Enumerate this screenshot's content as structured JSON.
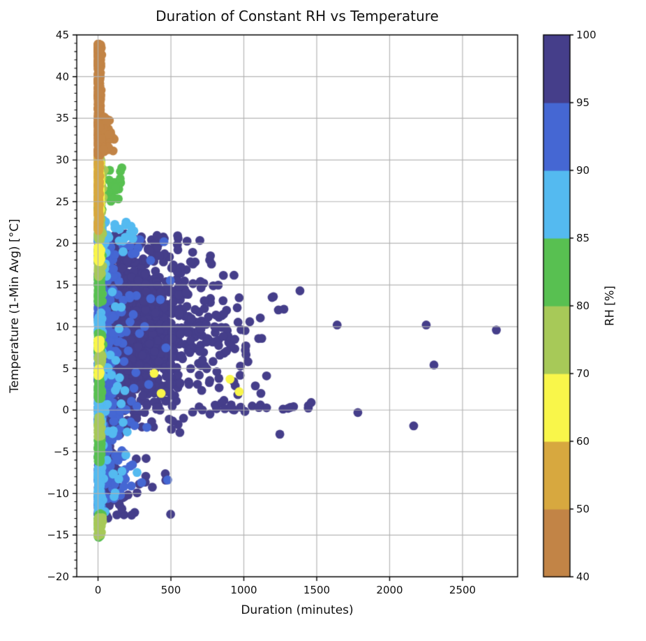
{
  "chart_data": {
    "type": "scatter",
    "title": "Duration of Constant RH vs Temperature",
    "xlabel": "Duration (minutes)",
    "ylabel": "Temperature (1-Min Avg) [°C]",
    "xlim": [
      -146,
      2878
    ],
    "ylim": [
      -20,
      45
    ],
    "xticks": [
      0,
      500,
      1000,
      1500,
      2000,
      2500
    ],
    "yticks": [
      -20,
      -15,
      -10,
      -5,
      0,
      5,
      10,
      15,
      20,
      25,
      30,
      35,
      40,
      45
    ],
    "y_minor_step": 1,
    "grid": {
      "show": true,
      "color": "#b2b2b2",
      "width": 1.2,
      "above_points": true
    },
    "axes_color": "#000000",
    "marker_radius_px": 6.4,
    "palette": {
      "navy": "#453e8a",
      "royal": "#4567d3",
      "sky": "#54baf0",
      "green": "#58c051",
      "ygreen": "#a7c958",
      "yellow": "#f9f64a",
      "gold": "#d7a83f",
      "brown": "#c28446"
    },
    "colorbar": {
      "label": "RH [%]",
      "boundaries": [
        40,
        50,
        60,
        70,
        80,
        85,
        90,
        95,
        100
      ],
      "band_colors": [
        "brown",
        "gold",
        "yellow",
        "ygreen",
        "green",
        "sky",
        "royal",
        "navy"
      ]
    },
    "seed": 42,
    "clusters": [
      {
        "name": "navy-core",
        "color": "navy",
        "n": 1700,
        "x": {
          "kind": "expo",
          "min": 6,
          "scale": 230,
          "max": 1140
        },
        "y": {
          "kind": "normal",
          "mean": 9.5,
          "sd": 5.2,
          "clip": [
            -4.6,
            20.9
          ]
        }
      },
      {
        "name": "navy-column",
        "color": "navy",
        "n": 220,
        "x": {
          "kind": "halfnormal",
          "scale": 16,
          "max": 85
        },
        "y": {
          "kind": "uniform",
          "min": -12.8,
          "max": 20.5
        }
      },
      {
        "name": "navy-low",
        "color": "navy",
        "n": 75,
        "x": {
          "kind": "expo",
          "min": 5,
          "scale": 130,
          "max": 890
        },
        "y": {
          "kind": "uniform",
          "min": -13,
          "max": -4.4
        }
      },
      {
        "name": "navy-row-zero",
        "color": "navy",
        "n": 26,
        "x": {
          "kind": "uniform",
          "min": 20,
          "max": 1460
        },
        "y": {
          "kind": "normal",
          "mean": 0.32,
          "sd": 0.3,
          "clip": [
            -0.4,
            1.0
          ]
        }
      },
      {
        "name": "navy-top-fringe",
        "color": "navy",
        "n": 26,
        "x": {
          "kind": "uniform",
          "min": 10,
          "max": 560
        },
        "y": {
          "kind": "uniform",
          "min": 18.5,
          "max": 21.2
        }
      },
      {
        "name": "navy-outliers",
        "color": "navy",
        "kind": "list",
        "points": [
          [
            1079,
            2.9
          ],
          [
            1103,
            0.3
          ],
          [
            1117,
            2.0
          ],
          [
            1156,
            4.1
          ],
          [
            1194,
            13.5
          ],
          [
            1203,
            13.6
          ],
          [
            1237,
            12.0
          ],
          [
            1247,
            -2.9
          ],
          [
            1275,
            12.1
          ],
          [
            1304,
            0.2
          ],
          [
            1385,
            14.3
          ],
          [
            1462,
            0.9
          ],
          [
            1640,
            10.2
          ],
          [
            1782,
            -0.3
          ],
          [
            2165,
            -1.9
          ],
          [
            2251,
            10.2
          ],
          [
            2304,
            5.4
          ],
          [
            2732,
            9.6
          ]
        ]
      },
      {
        "name": "royal-scatter",
        "color": "royal",
        "n": 270,
        "x": {
          "kind": "expo",
          "min": 12,
          "scale": 95,
          "max": 520
        },
        "y": {
          "kind": "uniform",
          "min": -11,
          "max": 20.6
        }
      },
      {
        "name": "royal-column",
        "color": "royal",
        "n": 330,
        "x": {
          "kind": "halfnormal",
          "scale": 12,
          "max": 70
        },
        "y": {
          "kind": "bands",
          "bands": [
            [
              18.5,
              20.5
            ],
            [
              11,
              13.2
            ],
            [
              2,
              5
            ],
            [
              -1.5,
              2
            ],
            [
              -8.5,
              -4
            ],
            [
              -13.2,
              -10.5
            ]
          ]
        }
      },
      {
        "name": "sky-scatter",
        "color": "sky",
        "n": 60,
        "x": {
          "kind": "expo",
          "min": 10,
          "scale": 70,
          "max": 300
        },
        "y": {
          "kind": "uniform",
          "min": -12.5,
          "max": 22
        }
      },
      {
        "name": "sky-column",
        "color": "sky",
        "n": 420,
        "x": {
          "kind": "halfnormal",
          "scale": 11,
          "max": 60
        },
        "y": {
          "kind": "bands",
          "bands": [
            [
              20.3,
              23
            ],
            [
              9.3,
              11.2
            ],
            [
              4.4,
              7.2
            ],
            [
              -2.2,
              1.2
            ],
            [
              -12.3,
              -6.8
            ]
          ]
        }
      },
      {
        "name": "sky-bulge",
        "color": "sky",
        "n": 18,
        "x": {
          "kind": "uniform",
          "min": 40,
          "max": 250
        },
        "y": {
          "kind": "uniform",
          "min": 20.5,
          "max": 22.6
        }
      },
      {
        "name": "green-column",
        "color": "green",
        "n": 430,
        "x": {
          "kind": "halfnormal",
          "scale": 11,
          "max": 58
        },
        "y": {
          "kind": "bands",
          "bands": [
            [
              23.8,
              28.6
            ],
            [
              12.8,
              16.2
            ],
            [
              1.3,
              4.6
            ],
            [
              -6.2,
              -3.4
            ],
            [
              -15.3,
              -12.4
            ],
            [
              6.8,
              9.2
            ],
            [
              17,
              19
            ]
          ]
        }
      },
      {
        "name": "green-bulge",
        "color": "green",
        "n": 26,
        "x": {
          "kind": "uniform",
          "min": 55,
          "max": 165
        },
        "y": {
          "kind": "normal",
          "mean": 27,
          "sd": 1.2,
          "clip": [
            24.5,
            29.5
          ]
        }
      },
      {
        "name": "ygreen-column",
        "color": "ygreen",
        "n": 300,
        "x": {
          "kind": "halfnormal",
          "scale": 13,
          "max": 65
        },
        "y": {
          "kind": "bands",
          "bands": [
            [
              20.3,
              30.3
            ],
            [
              16,
              18.2
            ],
            [
              -3.2,
              -0.8
            ],
            [
              -15.2,
              -12.8
            ],
            [
              5,
              7
            ]
          ]
        }
      },
      {
        "name": "yellow-column",
        "color": "yellow",
        "n": 330,
        "x": {
          "kind": "halfnormal",
          "scale": 8,
          "max": 48
        },
        "y": {
          "kind": "bands",
          "bands": [
            [
              23.3,
              29.8
            ],
            [
              17.8,
              19.6
            ],
            [
              7.4,
              8.4
            ],
            [
              4.1,
              5.0
            ],
            [
              25,
              29
            ]
          ]
        }
      },
      {
        "name": "yellow-in-cloud",
        "color": "yellow",
        "kind": "list",
        "points": [
          [
            385,
            4.4
          ],
          [
            433,
            2.0
          ],
          [
            905,
            3.7
          ],
          [
            968,
            2.2
          ]
        ]
      },
      {
        "name": "gold-core",
        "color": "gold",
        "n": 150,
        "x": {
          "kind": "halfnormal",
          "scale": 5,
          "max": 24
        },
        "y": {
          "kind": "uniform",
          "min": 21.5,
          "max": 31.2
        }
      },
      {
        "name": "brown-spike",
        "color": "brown",
        "n": 470,
        "x": {
          "kind": "halfnormal",
          "scale": 7.5,
          "max": 42
        },
        "y": {
          "kind": "uniform",
          "min": 30.6,
          "max": 43.9
        }
      },
      {
        "name": "brown-head",
        "color": "brown",
        "n": 90,
        "x": {
          "kind": "halfnormal",
          "scale": 10,
          "max": 40
        },
        "y": {
          "kind": "uniform",
          "min": 41,
          "max": 43.9
        }
      },
      {
        "name": "brown-bulge",
        "color": "brown",
        "n": 48,
        "x": {
          "kind": "expo",
          "min": 8,
          "scale": 38,
          "max": 118
        },
        "y": {
          "kind": "normal",
          "mean": 32.8,
          "sd": 1.3,
          "clip": [
            30.5,
            36.5
          ]
        }
      }
    ]
  }
}
